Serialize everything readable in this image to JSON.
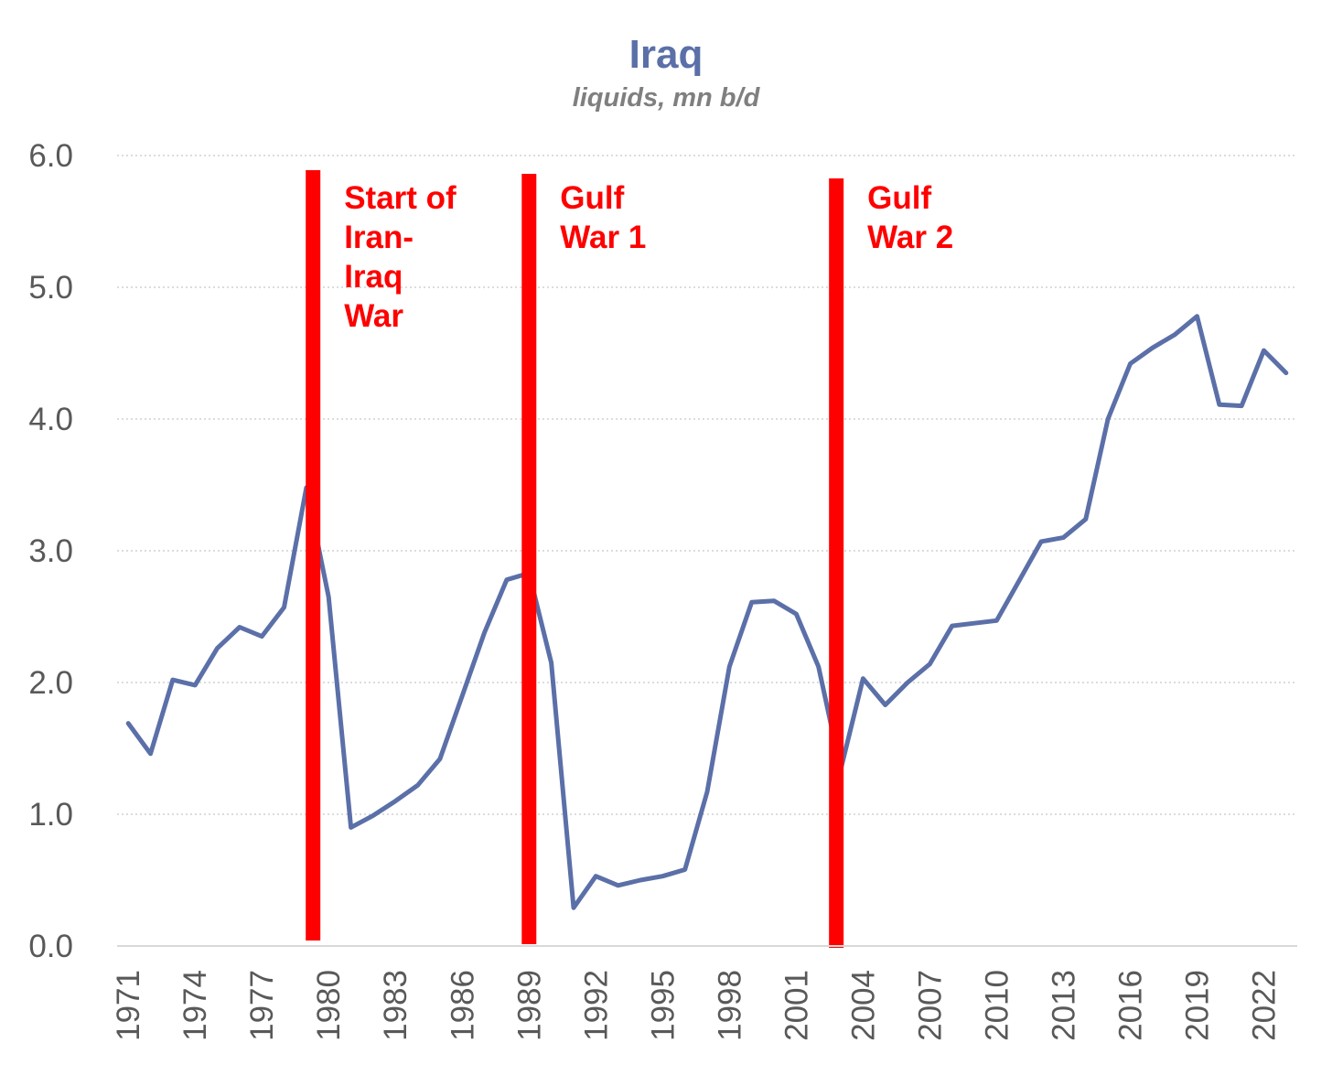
{
  "chart_data": {
    "type": "line",
    "title": "Iraq",
    "subtitle": "liquids, mn b/d",
    "xlabel": "",
    "ylabel": "",
    "ylim": [
      0,
      6
    ],
    "yticks": [
      "0.0",
      "1.0",
      "2.0",
      "3.0",
      "4.0",
      "5.0",
      "6.0"
    ],
    "xticks": [
      "1971",
      "1974",
      "1977",
      "1980",
      "1983",
      "1986",
      "1989",
      "1992",
      "1995",
      "1998",
      "2001",
      "2004",
      "2007",
      "2010",
      "2013",
      "2016",
      "2019",
      "2022"
    ],
    "grid": "horizontal dotted",
    "x": [
      1971,
      1972,
      1973,
      1974,
      1975,
      1976,
      1977,
      1978,
      1979,
      1980,
      1981,
      1982,
      1983,
      1984,
      1985,
      1986,
      1987,
      1988,
      1989,
      1990,
      1991,
      1992,
      1993,
      1994,
      1995,
      1996,
      1997,
      1998,
      1999,
      2000,
      2001,
      2002,
      2003,
      2004,
      2005,
      2006,
      2007,
      2008,
      2009,
      2010,
      2011,
      2012,
      2013,
      2014,
      2015,
      2016,
      2017,
      2018,
      2019,
      2020,
      2021,
      2022,
      2023
    ],
    "series": [
      {
        "values": [
          1.69,
          1.46,
          2.02,
          1.98,
          2.26,
          2.42,
          2.35,
          2.57,
          3.48,
          2.65,
          0.9,
          0.99,
          1.1,
          1.22,
          1.42,
          1.9,
          2.38,
          2.78,
          2.83,
          2.15,
          0.29,
          0.53,
          0.46,
          0.5,
          0.53,
          0.58,
          1.17,
          2.12,
          2.61,
          2.62,
          2.52,
          2.12,
          1.34,
          2.03,
          1.83,
          2.0,
          2.14,
          2.43,
          2.45,
          2.47,
          2.77,
          3.07,
          3.1,
          3.24,
          4.0,
          4.42,
          4.54,
          4.64,
          4.78,
          4.11,
          4.1,
          4.52,
          4.35
        ],
        "color": "#5B6FA8"
      }
    ],
    "events": [
      {
        "year": 1979.3,
        "label": [
          "Start of",
          "Iran-",
          "Iraq",
          "War"
        ]
      },
      {
        "year": 1989.0,
        "label": [
          "Gulf",
          "War 1"
        ]
      },
      {
        "year": 2002.8,
        "label": [
          "Gulf",
          "War 2"
        ]
      }
    ],
    "colors": {
      "title": "#5B6FA8",
      "subtitle": "#7F7F7F",
      "line": "#5B6FA8",
      "event": "#FF0000",
      "tick": "#595959",
      "grid": "#D0D0D0",
      "axis": "#D9D9D9"
    }
  }
}
